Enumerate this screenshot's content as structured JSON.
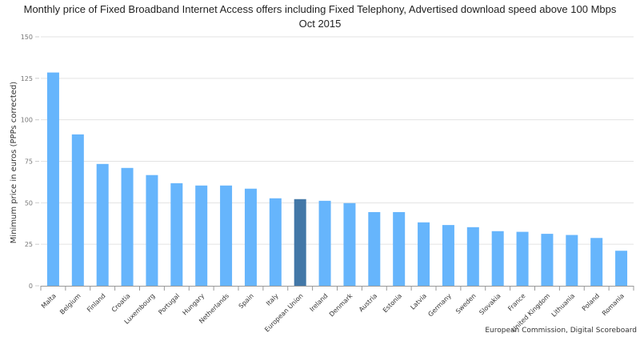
{
  "chart_data": {
    "type": "bar",
    "title": "Monthly price of Fixed Broadband Internet Access offers including Fixed Telephony, Advertised download speed above 100 Mbps",
    "subtitle": "Oct 2015",
    "xlabel": "",
    "ylabel": "Minimum price in euros (PPPs corrected)",
    "ylim": [
      0,
      150
    ],
    "yticks": [
      0,
      25,
      50,
      75,
      100,
      125,
      150
    ],
    "grid": true,
    "legend": "none",
    "credit": "European Commission, Digital Scoreboard",
    "categories": [
      "Malta",
      "Belgium",
      "Finland",
      "Croatia",
      "Luxembourg",
      "Portugal",
      "Hungary",
      "Netherlands",
      "Spain",
      "Italy",
      "European Union",
      "Ireland",
      "Denmark",
      "Austria",
      "Estonia",
      "Latvia",
      "Germany",
      "Sweden",
      "Slovakia",
      "France",
      "United Kingdom",
      "Lithuania",
      "Poland",
      "Romania"
    ],
    "values": [
      128.5,
      91.2,
      73.4,
      71.0,
      66.7,
      61.8,
      60.4,
      60.4,
      58.5,
      52.7,
      52.2,
      51.2,
      49.8,
      44.4,
      44.4,
      38.2,
      36.6,
      35.3,
      32.9,
      32.5,
      31.3,
      30.6,
      28.8,
      21.1
    ],
    "highlight": "European Union",
    "colors": {
      "bar": "#66b5fc",
      "highlight": "#4277a7",
      "grid": "#e3e3e3",
      "axis": "#999999",
      "text": "#444444"
    }
  }
}
